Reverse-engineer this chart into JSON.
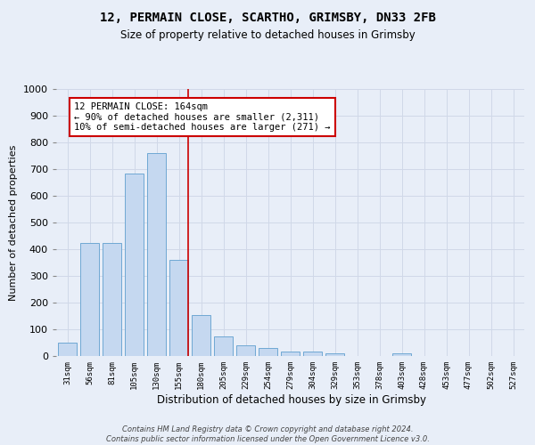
{
  "title": "12, PERMAIN CLOSE, SCARTHO, GRIMSBY, DN33 2FB",
  "subtitle": "Size of property relative to detached houses in Grimsby",
  "xlabel": "Distribution of detached houses by size in Grimsby",
  "ylabel": "Number of detached properties",
  "bar_labels": [
    "31sqm",
    "56sqm",
    "81sqm",
    "105sqm",
    "130sqm",
    "155sqm",
    "180sqm",
    "205sqm",
    "229sqm",
    "254sqm",
    "279sqm",
    "304sqm",
    "329sqm",
    "353sqm",
    "378sqm",
    "403sqm",
    "428sqm",
    "453sqm",
    "477sqm",
    "502sqm",
    "527sqm"
  ],
  "bar_values": [
    50,
    425,
    425,
    685,
    760,
    360,
    155,
    75,
    40,
    30,
    18,
    18,
    10,
    0,
    0,
    10,
    0,
    0,
    0,
    0,
    0
  ],
  "bar_color": "#c5d8f0",
  "bar_edge_color": "#6fa8d4",
  "grid_color": "#d0d8e8",
  "vline_color": "#cc0000",
  "annotation_text": "12 PERMAIN CLOSE: 164sqm\n← 90% of detached houses are smaller (2,311)\n10% of semi-detached houses are larger (271) →",
  "annotation_box_color": "white",
  "annotation_box_edge": "#cc0000",
  "ylim": [
    0,
    1000
  ],
  "yticks": [
    0,
    100,
    200,
    300,
    400,
    500,
    600,
    700,
    800,
    900,
    1000
  ],
  "footer": "Contains HM Land Registry data © Crown copyright and database right 2024.\nContains public sector information licensed under the Open Government Licence v3.0.",
  "bg_color": "#e8eef8",
  "plot_bg_color": "#e8eef8",
  "vline_bar_index": 5
}
